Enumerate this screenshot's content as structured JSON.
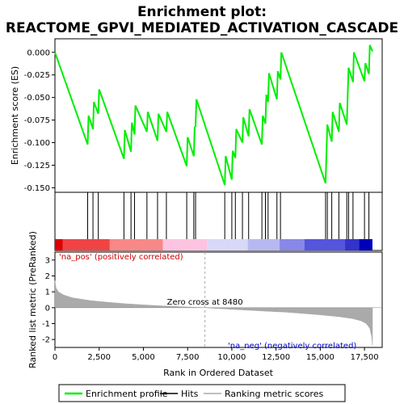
{
  "chart_data": {
    "type": "line",
    "title_line1": "Enrichment plot:",
    "title_line2": "REACTOME_GPVI_MEDIATED_ACTIVATION_CASCADE",
    "colors": {
      "enrichment": "#00ee00",
      "hits": "#000000",
      "metric_fill": "#aaaaaa",
      "pos_label": "#cc0000",
      "neg_label": "#0000cc",
      "zero_line": "#aaaaaa"
    },
    "x_range": [
      0,
      18500
    ],
    "x_ticks": [
      0,
      2500,
      5000,
      7500,
      10000,
      12500,
      15000,
      17500
    ],
    "x_tick_labels": [
      "0",
      "2,500",
      "5,000",
      "7,500",
      "10,000",
      "12,500",
      "15,000",
      "17,500"
    ],
    "xlabel": "Rank in Ordered Dataset",
    "es_panel": {
      "ylabel": "Enrichment score (ES)",
      "ylim": [
        -0.155,
        0.015
      ],
      "y_ticks": [
        0.0,
        -0.025,
        -0.05,
        -0.075,
        -0.1,
        -0.125,
        -0.15
      ],
      "y_tick_labels": [
        "0.000",
        "-0.025",
        "-0.050",
        "-0.075",
        "-0.100",
        "-0.125",
        "-0.150"
      ],
      "profile": [
        [
          0,
          0.0
        ],
        [
          1850,
          -0.102
        ],
        [
          1900,
          -0.07
        ],
        [
          2150,
          -0.085
        ],
        [
          2200,
          -0.055
        ],
        [
          2450,
          -0.068
        ],
        [
          2500,
          -0.041
        ],
        [
          3900,
          -0.118
        ],
        [
          3950,
          -0.086
        ],
        [
          4300,
          -0.11
        ],
        [
          4350,
          -0.078
        ],
        [
          4500,
          -0.091
        ],
        [
          4550,
          -0.059
        ],
        [
          5200,
          -0.088
        ],
        [
          5250,
          -0.066
        ],
        [
          5800,
          -0.098
        ],
        [
          5850,
          -0.068
        ],
        [
          6300,
          -0.088
        ],
        [
          6350,
          -0.066
        ],
        [
          7450,
          -0.126
        ],
        [
          7500,
          -0.094
        ],
        [
          7850,
          -0.115
        ],
        [
          7900,
          -0.083
        ],
        [
          7950,
          -0.082
        ],
        [
          8000,
          -0.052
        ],
        [
          9600,
          -0.147
        ],
        [
          9650,
          -0.115
        ],
        [
          10000,
          -0.141
        ],
        [
          10050,
          -0.109
        ],
        [
          10200,
          -0.117
        ],
        [
          10250,
          -0.085
        ],
        [
          10600,
          -0.1
        ],
        [
          10650,
          -0.072
        ],
        [
          10950,
          -0.093
        ],
        [
          11000,
          -0.063
        ],
        [
          11700,
          -0.102
        ],
        [
          11750,
          -0.07
        ],
        [
          11900,
          -0.079
        ],
        [
          11950,
          -0.047
        ],
        [
          12050,
          -0.055
        ],
        [
          12100,
          -0.023
        ],
        [
          12550,
          -0.052
        ],
        [
          12600,
          -0.021
        ],
        [
          12750,
          -0.03
        ],
        [
          12800,
          0.0
        ],
        [
          15300,
          -0.145
        ],
        [
          15350,
          -0.113
        ],
        [
          15400,
          -0.08
        ],
        [
          15650,
          -0.099
        ],
        [
          15700,
          -0.066
        ],
        [
          16050,
          -0.088
        ],
        [
          16100,
          -0.056
        ],
        [
          16500,
          -0.08
        ],
        [
          16550,
          -0.048
        ],
        [
          16600,
          -0.017
        ],
        [
          16850,
          -0.033
        ],
        [
          16900,
          0.0
        ],
        [
          17500,
          -0.032
        ],
        [
          17550,
          -0.012
        ],
        [
          17750,
          -0.024
        ],
        [
          17800,
          0.008
        ],
        [
          17950,
          0.001
        ]
      ]
    },
    "hit_positions": [
      1850,
      2150,
      2450,
      3900,
      4300,
      4500,
      5200,
      5800,
      6300,
      7450,
      7850,
      7950,
      9600,
      10000,
      10200,
      10600,
      10950,
      11700,
      11900,
      12050,
      12550,
      12750,
      15300,
      15400,
      15650,
      16050,
      16500,
      16600,
      16850,
      17500,
      17750
    ],
    "color_bar": {
      "segments": [
        {
          "start": 0,
          "end": 450,
          "color": "#dd0000"
        },
        {
          "start": 450,
          "end": 3100,
          "color": "#f04444"
        },
        {
          "start": 3100,
          "end": 6100,
          "color": "#f88888"
        },
        {
          "start": 6100,
          "end": 8600,
          "color": "#fcc4e0"
        },
        {
          "start": 8600,
          "end": 10900,
          "color": "#d8d8f8"
        },
        {
          "start": 10900,
          "end": 12700,
          "color": "#b8b8f0"
        },
        {
          "start": 12700,
          "end": 14100,
          "color": "#8888e8"
        },
        {
          "start": 14100,
          "end": 16400,
          "color": "#5555dd"
        },
        {
          "start": 16400,
          "end": 17200,
          "color": "#3333cc"
        },
        {
          "start": 17200,
          "end": 17950,
          "color": "#0000bb"
        }
      ]
    },
    "metric_panel": {
      "ylabel": "Ranked list metric (PreRanked)",
      "ylim": [
        -2.5,
        3.5
      ],
      "y_ticks": [
        3,
        2,
        1,
        0,
        -1,
        -2
      ],
      "y_tick_labels": [
        "3",
        "2",
        "1",
        "0",
        "-1",
        "-2"
      ],
      "curve": [
        [
          0,
          1.7
        ],
        [
          60,
          1.25
        ],
        [
          200,
          1.0
        ],
        [
          500,
          0.8
        ],
        [
          1000,
          0.62
        ],
        [
          2000,
          0.45
        ],
        [
          3000,
          0.34
        ],
        [
          4000,
          0.25
        ],
        [
          5000,
          0.18
        ],
        [
          6000,
          0.12
        ],
        [
          7000,
          0.07
        ],
        [
          8000,
          0.02
        ],
        [
          8480,
          0.0
        ],
        [
          9000,
          -0.04
        ],
        [
          10000,
          -0.1
        ],
        [
          11000,
          -0.16
        ],
        [
          12000,
          -0.22
        ],
        [
          13000,
          -0.28
        ],
        [
          14000,
          -0.36
        ],
        [
          15000,
          -0.45
        ],
        [
          16000,
          -0.56
        ],
        [
          16800,
          -0.68
        ],
        [
          17300,
          -0.82
        ],
        [
          17600,
          -1.0
        ],
        [
          17800,
          -1.3
        ],
        [
          17900,
          -1.8
        ],
        [
          17950,
          -2.35
        ]
      ],
      "zero_cross": 8480,
      "zero_cross_label": "Zero cross at 8480",
      "pos_label": "'na_pos' (positively correlated)",
      "neg_label": "'na_neg' (negatively correlated)"
    },
    "legend": [
      {
        "label": "Enrichment profile",
        "color": "#00ee00",
        "kind": "line"
      },
      {
        "label": "Hits",
        "color": "#000000",
        "kind": "line"
      },
      {
        "label": "Ranking metric scores",
        "color": "#aaaaaa",
        "kind": "line"
      }
    ]
  }
}
